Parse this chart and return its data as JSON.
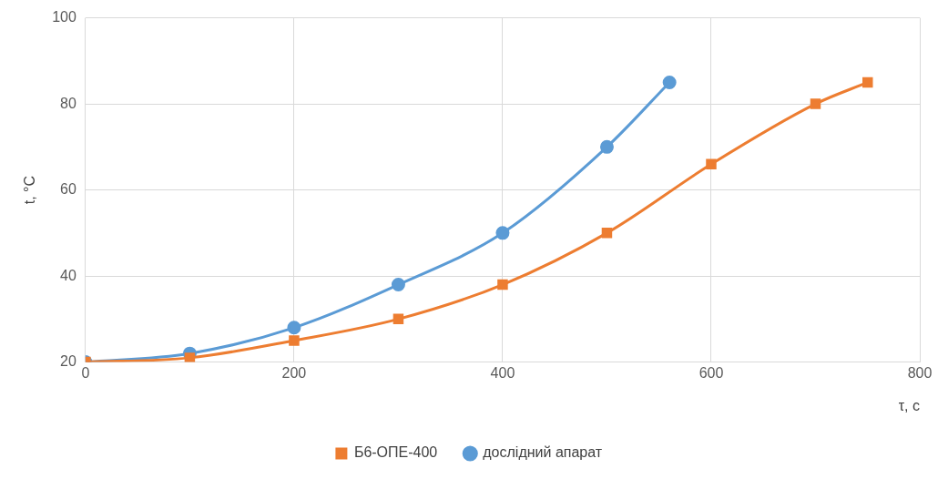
{
  "chart_data": {
    "type": "line",
    "xlabel": "τ, с",
    "ylabel": "t, °C",
    "xlim": [
      0,
      800
    ],
    "xticks": [
      0,
      200,
      400,
      600,
      800
    ],
    "ylim": [
      20,
      100
    ],
    "yticks": [
      20,
      40,
      60,
      80,
      100
    ],
    "grid": true,
    "legend": "bottom",
    "series": [
      {
        "name": "дослідний апарат",
        "color": "#5b9bd5",
        "marker": "circle",
        "x": [
          0,
          100,
          200,
          300,
          400,
          500,
          560
        ],
        "values": [
          20,
          22,
          28,
          38,
          50,
          70,
          85
        ]
      },
      {
        "name": "Б6-ОПЕ-400",
        "color": "#ed7d31",
        "marker": "square",
        "x": [
          0,
          100,
          200,
          300,
          400,
          500,
          600,
          700,
          750
        ],
        "values": [
          20,
          21,
          25,
          30,
          38,
          50,
          66,
          80,
          85
        ]
      }
    ]
  }
}
